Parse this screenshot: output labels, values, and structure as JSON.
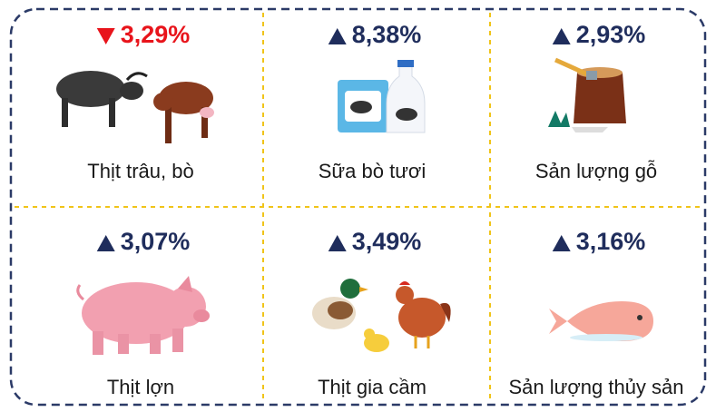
{
  "items": [
    {
      "label": "Thịt trâu, bò",
      "change": "3,29%",
      "direction": "down"
    },
    {
      "label": "Sữa bò tươi",
      "change": "8,38%",
      "direction": "up"
    },
    {
      "label": "Sản lượng gỗ",
      "change": "2,93%",
      "direction": "up"
    },
    {
      "label": "Thịt lợn",
      "change": "3,07%",
      "direction": "up"
    },
    {
      "label": "Thịt gia cầm",
      "change": "3,49%",
      "direction": "up"
    },
    {
      "label": "Sản lượng thủy sản",
      "change": "3,16%",
      "direction": "up"
    }
  ]
}
